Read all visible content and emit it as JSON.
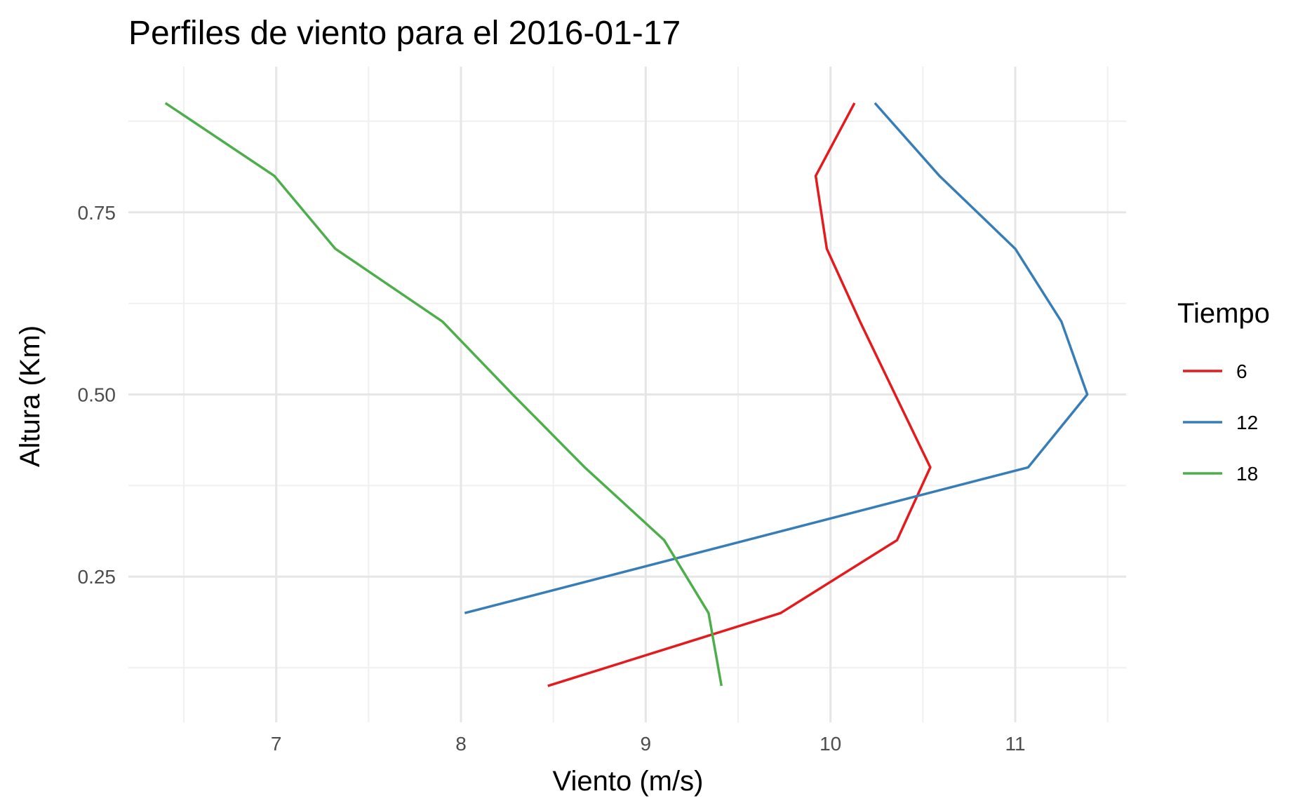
{
  "chart_data": {
    "type": "line",
    "title": "Perfiles de viento para el 2016-01-17",
    "xlabel": "Viento (m/s)",
    "ylabel": "Altura (Km)",
    "xlim": [
      6.2,
      11.6
    ],
    "ylim": [
      0.05,
      0.95
    ],
    "xticks": [
      7,
      8,
      9,
      10,
      11
    ],
    "xtick_labels": [
      "7",
      "8",
      "9",
      "10",
      "11"
    ],
    "xminor": [
      6.5,
      7.5,
      8.5,
      9.5,
      10.5,
      11.5
    ],
    "yticks": [
      0.25,
      0.5,
      0.75
    ],
    "ytick_labels": [
      "0.25",
      "0.50",
      "0.75"
    ],
    "yminor": [
      0.125,
      0.375,
      0.625,
      0.875
    ],
    "grid": true,
    "legend": {
      "title": "Tiempo",
      "position": "right"
    },
    "series": [
      {
        "name": "6",
        "color": "#e41a1c",
        "points": [
          {
            "x": 8.47,
            "y": 0.1
          },
          {
            "x": 9.73,
            "y": 0.2
          },
          {
            "x": 10.36,
            "y": 0.3
          },
          {
            "x": 10.54,
            "y": 0.4
          },
          {
            "x": 10.35,
            "y": 0.5
          },
          {
            "x": 10.16,
            "y": 0.6
          },
          {
            "x": 9.98,
            "y": 0.7
          },
          {
            "x": 9.92,
            "y": 0.8
          },
          {
            "x": 10.13,
            "y": 0.9
          }
        ]
      },
      {
        "name": "12",
        "color": "#377eb8",
        "points": [
          {
            "x": 8.02,
            "y": 0.2
          },
          {
            "x": 11.07,
            "y": 0.4
          },
          {
            "x": 11.39,
            "y": 0.5
          },
          {
            "x": 11.25,
            "y": 0.6
          },
          {
            "x": 11.0,
            "y": 0.7
          },
          {
            "x": 10.59,
            "y": 0.8
          },
          {
            "x": 10.24,
            "y": 0.9
          }
        ]
      },
      {
        "name": "18",
        "color": "#4daf4a",
        "points": [
          {
            "x": 9.41,
            "y": 0.1
          },
          {
            "x": 9.34,
            "y": 0.2
          },
          {
            "x": 9.1,
            "y": 0.3
          },
          {
            "x": 8.67,
            "y": 0.4
          },
          {
            "x": 8.28,
            "y": 0.5
          },
          {
            "x": 7.9,
            "y": 0.6
          },
          {
            "x": 7.32,
            "y": 0.7
          },
          {
            "x": 6.99,
            "y": 0.8
          },
          {
            "x": 6.4,
            "y": 0.9
          }
        ]
      }
    ]
  }
}
